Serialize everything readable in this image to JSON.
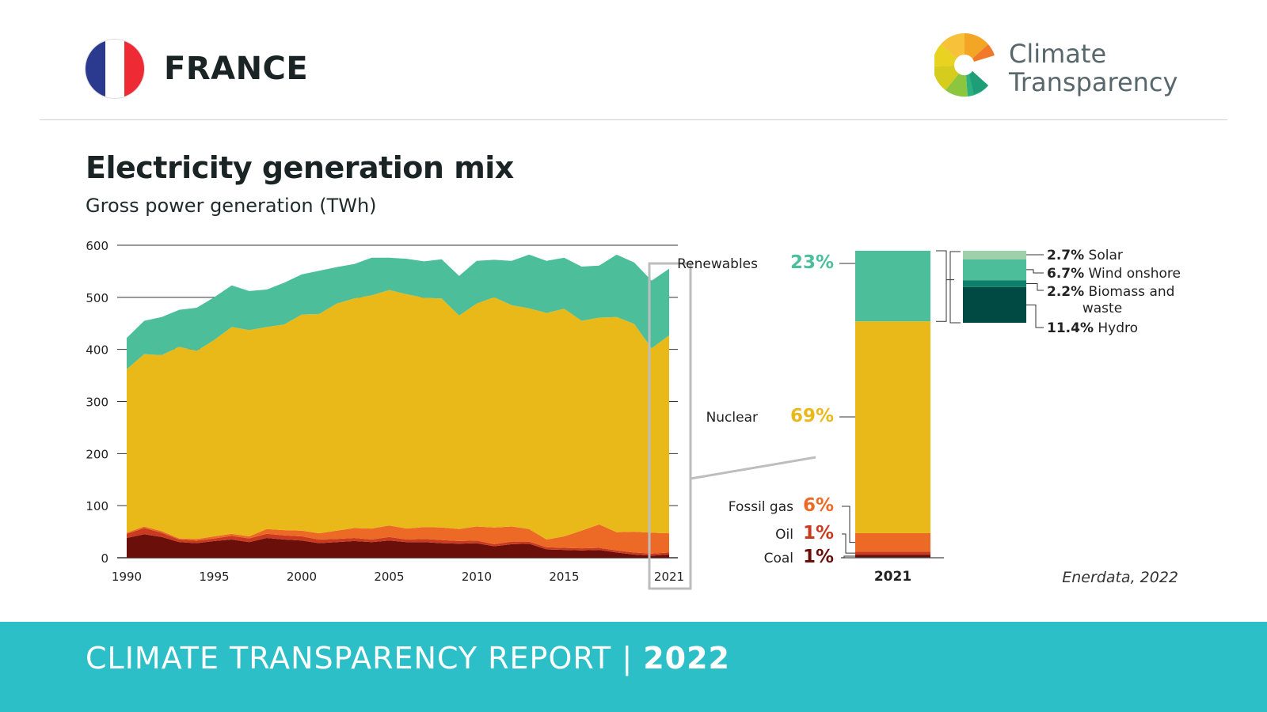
{
  "header": {
    "country": "FRANCE",
    "brand_line1": "Climate",
    "brand_line2": "Transparency",
    "flag_colors": [
      "#2b3a8f",
      "#ffffff",
      "#ee2a35"
    ]
  },
  "title": "Electricity generation mix",
  "subtitle": "Gross power generation (TWh)",
  "source": "Enerdata, 2022",
  "footer": {
    "text": "CLIMATE TRANSPARENCY REPORT",
    "sep": " | ",
    "year": "2022"
  },
  "colors": {
    "coal": "#6b0f0a",
    "oil": "#c93a1f",
    "gas": "#ec6a25",
    "nuclear": "#e9b919",
    "renewables": "#4cbe9a",
    "solar": "#9dd1a9",
    "wind": "#4cbe9a",
    "biomass": "#0e7f69",
    "hydro": "#004a43",
    "footer": "#2cbfc7"
  },
  "chart_data": [
    {
      "type": "area",
      "stacked": true,
      "xlabel": "",
      "ylabel": "",
      "x": [
        1990,
        1991,
        1992,
        1993,
        1994,
        1995,
        1996,
        1997,
        1998,
        1999,
        2000,
        2001,
        2002,
        2003,
        2004,
        2005,
        2006,
        2007,
        2008,
        2009,
        2010,
        2011,
        2012,
        2013,
        2014,
        2015,
        2016,
        2017,
        2018,
        2019,
        2020,
        2021
      ],
      "xticks": [
        "1990",
        "1995",
        "2000",
        "2005",
        "2010",
        "2015",
        "2021"
      ],
      "xtick_values": [
        1990,
        1995,
        2000,
        2005,
        2010,
        2015,
        2021
      ],
      "yticks": [
        "0",
        "100",
        "200",
        "300",
        "400",
        "500",
        "600"
      ],
      "ytick_values": [
        0,
        100,
        200,
        300,
        400,
        500,
        600
      ],
      "ylim": [
        0,
        600
      ],
      "grid": true,
      "highlight_year": 2021,
      "series": [
        {
          "key": "coal",
          "values": [
            38,
            45,
            40,
            30,
            28,
            32,
            35,
            30,
            38,
            35,
            33,
            28,
            30,
            32,
            30,
            33,
            30,
            30,
            28,
            27,
            28,
            22,
            26,
            27,
            16,
            15,
            14,
            15,
            10,
            6,
            4,
            6
          ]
        },
        {
          "key": "oil",
          "values": [
            8,
            12,
            8,
            5,
            5,
            5,
            7,
            7,
            8,
            8,
            8,
            7,
            6,
            6,
            5,
            7,
            5,
            6,
            6,
            5,
            5,
            4,
            5,
            4,
            4,
            4,
            4,
            4,
            4,
            4,
            4,
            4
          ]
        },
        {
          "key": "gas",
          "values": [
            2,
            3,
            3,
            2,
            3,
            4,
            4,
            4,
            9,
            10,
            11,
            12,
            16,
            19,
            21,
            22,
            21,
            23,
            24,
            23,
            27,
            32,
            29,
            24,
            15,
            22,
            34,
            45,
            35,
            40,
            40,
            37
          ]
        },
        {
          "key": "nuclear",
          "values": [
            314,
            331,
            338,
            368,
            361,
            377,
            397,
            396,
            388,
            395,
            415,
            421,
            436,
            441,
            448,
            452,
            450,
            440,
            440,
            410,
            428,
            442,
            425,
            424,
            435,
            437,
            403,
            397,
            413,
            399,
            354,
            380
          ]
        },
        {
          "key": "renewables",
          "values": [
            60,
            64,
            73,
            71,
            83,
            82,
            80,
            75,
            72,
            80,
            77,
            83,
            70,
            66,
            72,
            62,
            68,
            70,
            75,
            76,
            82,
            72,
            85,
            103,
            100,
            98,
            104,
            100,
            120,
            118,
            130,
            128
          ]
        }
      ]
    },
    {
      "type": "bar",
      "stacked": true,
      "categories": [
        "2021"
      ],
      "xlabel": "",
      "ylabel": "",
      "ylim": [
        0,
        100
      ],
      "series": [
        {
          "key": "coal",
          "name": "Coal",
          "pct": "1%",
          "values": [
            1
          ]
        },
        {
          "key": "oil",
          "name": "Oil",
          "pct": "1%",
          "values": [
            1
          ]
        },
        {
          "key": "gas",
          "name": "Fossil gas",
          "pct": "6%",
          "values": [
            6
          ]
        },
        {
          "key": "nuclear",
          "name": "Nuclear",
          "pct": "69%",
          "values": [
            69
          ]
        },
        {
          "key": "renewables",
          "name": "Renewables",
          "pct": "23%",
          "values": [
            23
          ]
        }
      ]
    },
    {
      "type": "bar",
      "stacked": true,
      "categories": [
        "Renewables 2021"
      ],
      "xlabel": "",
      "ylabel": "",
      "series": [
        {
          "key": "hydro",
          "pct": "11.4%",
          "name": "Hydro",
          "values": [
            11.4
          ]
        },
        {
          "key": "biomass",
          "pct": "2.2%",
          "name": "Biomass and",
          "name2": "waste",
          "values": [
            2.2
          ]
        },
        {
          "key": "wind",
          "pct": "6.7%",
          "name": "Wind onshore",
          "values": [
            6.7
          ]
        },
        {
          "key": "solar",
          "pct": "2.7%",
          "name": "Solar",
          "values": [
            2.7
          ]
        }
      ]
    }
  ]
}
